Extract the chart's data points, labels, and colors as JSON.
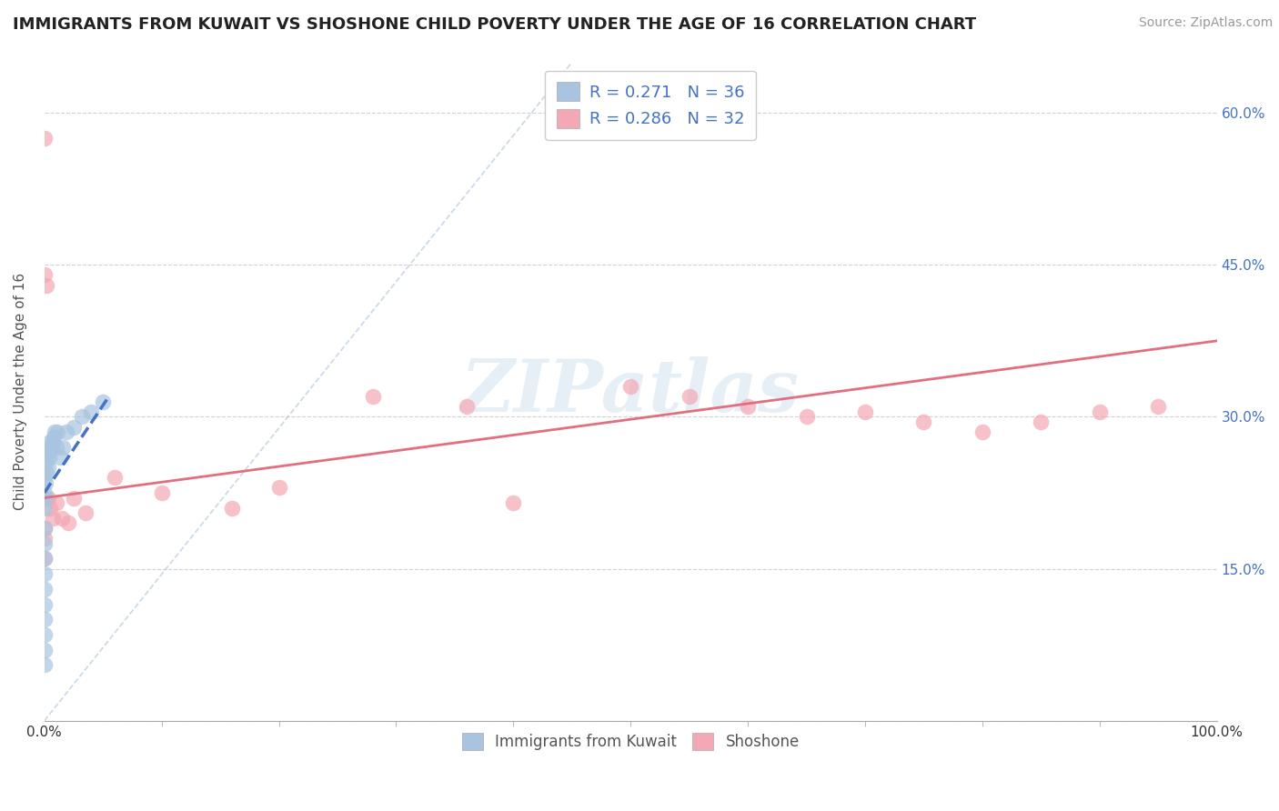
{
  "title": "IMMIGRANTS FROM KUWAIT VS SHOSHONE CHILD POVERTY UNDER THE AGE OF 16 CORRELATION CHART",
  "source": "Source: ZipAtlas.com",
  "ylabel": "Child Poverty Under the Age of 16",
  "xlim": [
    0.0,
    1.0
  ],
  "ylim": [
    0.0,
    0.65
  ],
  "xtick_positions": [
    0.0,
    1.0
  ],
  "xtick_labels": [
    "0.0%",
    "100.0%"
  ],
  "ytick_positions": [
    0.0,
    0.15,
    0.3,
    0.45,
    0.6
  ],
  "right_ytick_labels": [
    "",
    "15.0%",
    "30.0%",
    "45.0%",
    "60.0%"
  ],
  "legend_R1": "0.271",
  "legend_N1": "36",
  "legend_R2": "0.286",
  "legend_N2": "32",
  "color_kuwait": "#a8c4e0",
  "color_shoshone": "#f4a7b4",
  "color_kuwait_line": "#4472c4",
  "color_shoshone_line": "#e07080",
  "color_ref_line": "#b0c8e0",
  "color_text_blue": "#4472c4",
  "watermark": "ZIPatlas",
  "kuwait_x": [
    0.0,
    0.0,
    0.0,
    0.0,
    0.0,
    0.0,
    0.0,
    0.0,
    0.0,
    0.0,
    0.0,
    0.0,
    0.0,
    0.001,
    0.001,
    0.001,
    0.002,
    0.002,
    0.003,
    0.003,
    0.004,
    0.005,
    0.005,
    0.006,
    0.007,
    0.008,
    0.009,
    0.01,
    0.011,
    0.013,
    0.016,
    0.019,
    0.025,
    0.032,
    0.04,
    0.05
  ],
  "kuwait_y": [
    0.055,
    0.07,
    0.085,
    0.1,
    0.115,
    0.13,
    0.145,
    0.16,
    0.175,
    0.19,
    0.21,
    0.225,
    0.24,
    0.22,
    0.235,
    0.255,
    0.245,
    0.265,
    0.25,
    0.265,
    0.26,
    0.27,
    0.275,
    0.27,
    0.275,
    0.28,
    0.285,
    0.27,
    0.285,
    0.26,
    0.27,
    0.285,
    0.29,
    0.3,
    0.305,
    0.315
  ],
  "shoshone_x": [
    0.0,
    0.0,
    0.0,
    0.0,
    0.0,
    0.0,
    0.002,
    0.003,
    0.005,
    0.007,
    0.01,
    0.015,
    0.02,
    0.025,
    0.035,
    0.06,
    0.1,
    0.16,
    0.2,
    0.28,
    0.36,
    0.4,
    0.5,
    0.55,
    0.6,
    0.65,
    0.7,
    0.75,
    0.8,
    0.85,
    0.9,
    0.95
  ],
  "shoshone_y": [
    0.575,
    0.44,
    0.22,
    0.19,
    0.18,
    0.16,
    0.43,
    0.22,
    0.21,
    0.2,
    0.215,
    0.2,
    0.195,
    0.22,
    0.205,
    0.24,
    0.225,
    0.21,
    0.23,
    0.32,
    0.31,
    0.215,
    0.33,
    0.32,
    0.31,
    0.3,
    0.305,
    0.295,
    0.285,
    0.295,
    0.305,
    0.31
  ],
  "kuwait_line_x": [
    0.0,
    0.055
  ],
  "kuwait_line_y": [
    0.225,
    0.32
  ],
  "shoshone_line_x": [
    0.0,
    1.0
  ],
  "shoshone_line_y": [
    0.22,
    0.375
  ],
  "ref_line_x": [
    0.0,
    0.45
  ],
  "ref_line_y": [
    0.0,
    0.65
  ]
}
